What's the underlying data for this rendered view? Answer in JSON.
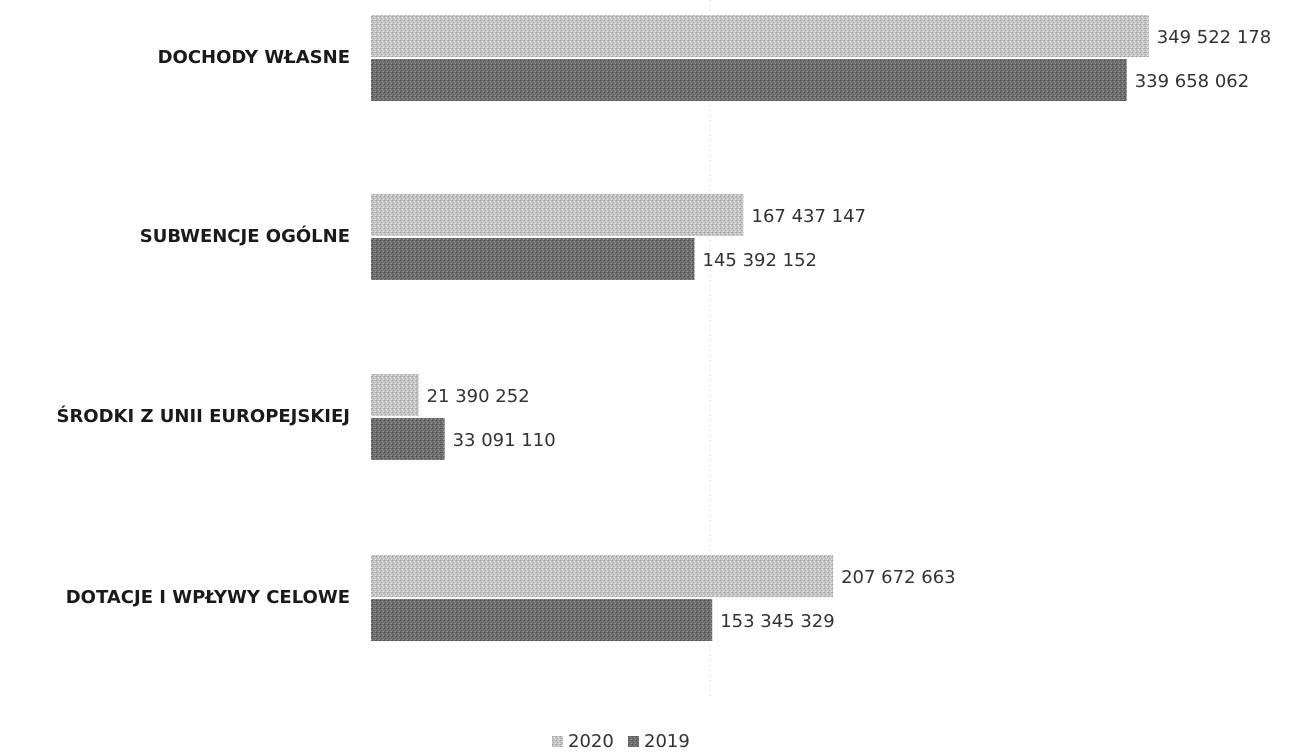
{
  "chart_data": {
    "type": "bar",
    "orientation": "horizontal",
    "title": "",
    "xlabel": "",
    "ylabel": "",
    "xlim": [
      0,
      350000000
    ],
    "grid": false,
    "legend_position": "bottom-center",
    "categories": [
      "DOCHODY WŁASNE",
      "SUBWENCJE OGÓLNE",
      "ŚRODKI Z UNII EUROPEJSKIEJ",
      "DOTACJE I WPŁYWY CELOWE"
    ],
    "series": [
      {
        "name": "2020",
        "color": "#bdbdbd",
        "values": [
          349522178,
          167437147,
          21390252,
          207672663
        ],
        "labels": [
          "349 522 178",
          "167 437 147",
          "21 390 252",
          "207 672 663"
        ]
      },
      {
        "name": "2019",
        "color": "#6e6e6e",
        "values": [
          339658062,
          145392152,
          33091110,
          153345329
        ],
        "labels": [
          "339 658 062",
          "145 392 152",
          "33 091 110",
          "153 345 329"
        ]
      }
    ]
  }
}
